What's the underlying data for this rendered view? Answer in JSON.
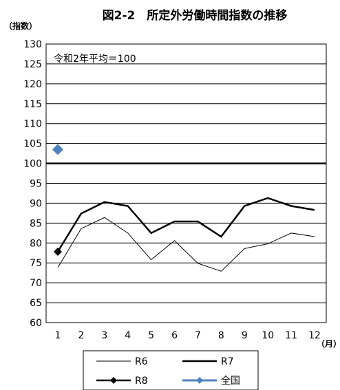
{
  "chart_data": {
    "type": "line",
    "title": "図2-2　所定外労働時間指数の推移",
    "ylabel": "（指数）",
    "xlabel": "（月）",
    "annotation": "令和2年平均＝100",
    "ylim": [
      60,
      130
    ],
    "yticks": [
      60,
      65,
      70,
      75,
      80,
      85,
      90,
      95,
      100,
      105,
      110,
      115,
      120,
      125,
      130
    ],
    "categories": [
      "1",
      "2",
      "3",
      "4",
      "5",
      "6",
      "7",
      "8",
      "9",
      "10",
      "11",
      "12"
    ],
    "grid": true,
    "reference_line": 100,
    "legend_position": "bottom",
    "series": [
      {
        "name": "R6",
        "color": "#000000",
        "style": "thin",
        "values": [
          73.8,
          83.6,
          86.4,
          82.5,
          75.8,
          80.6,
          74.9,
          72.9,
          78.6,
          79.8,
          82.5,
          81.6
        ]
      },
      {
        "name": "R7",
        "color": "#000000",
        "style": "thick",
        "values": [
          77.8,
          87.4,
          90.3,
          89.3,
          82.5,
          85.4,
          85.4,
          81.6,
          89.3,
          91.3,
          89.3,
          88.3
        ]
      },
      {
        "name": "R8",
        "color": "#000000",
        "style": "thick-diamond",
        "values": [
          77.8,
          null,
          null,
          null,
          null,
          null,
          null,
          null,
          null,
          null,
          null,
          null
        ]
      },
      {
        "name": "全国",
        "color": "#4f81bd",
        "style": "blue-diamond",
        "values": [
          103.5,
          null,
          null,
          null,
          null,
          null,
          null,
          null,
          null,
          null,
          null,
          null
        ]
      }
    ]
  }
}
